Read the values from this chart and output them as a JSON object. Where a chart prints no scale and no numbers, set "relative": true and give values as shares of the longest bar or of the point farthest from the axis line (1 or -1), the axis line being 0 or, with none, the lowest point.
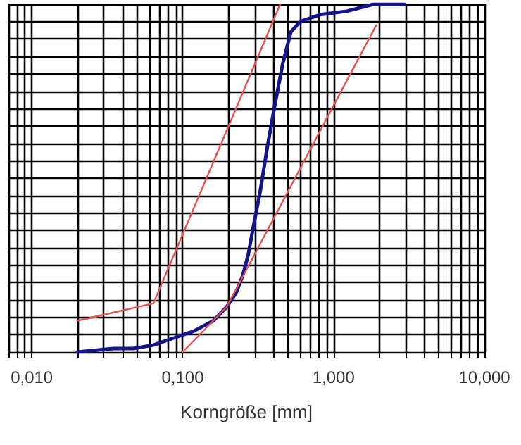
{
  "chart_data": {
    "type": "line",
    "xlabel": "Korngröße [mm]",
    "relative": true,
    "log": "x",
    "grid": true,
    "marker": "none",
    "line_style": "solid",
    "xlim": [
      0.007,
      10
    ],
    "xticks": [
      {
        "value": 0.007,
        "label": null
      },
      {
        "value": 0.008,
        "label": null
      },
      {
        "value": 0.009,
        "label": null
      },
      {
        "value": 0.01,
        "label": "0,010"
      },
      {
        "value": 0.02,
        "label": null
      },
      {
        "value": 0.03,
        "label": null
      },
      {
        "value": 0.04,
        "label": null
      },
      {
        "value": 0.05,
        "label": null
      },
      {
        "value": 0.06,
        "label": null
      },
      {
        "value": 0.07,
        "label": null
      },
      {
        "value": 0.08,
        "label": null
      },
      {
        "value": 0.09,
        "label": null
      },
      {
        "value": 0.1,
        "label": "0,100"
      },
      {
        "value": 0.2,
        "label": null
      },
      {
        "value": 0.3,
        "label": null
      },
      {
        "value": 0.4,
        "label": null
      },
      {
        "value": 0.5,
        "label": null
      },
      {
        "value": 0.6,
        "label": null
      },
      {
        "value": 0.7,
        "label": null
      },
      {
        "value": 0.8,
        "label": null
      },
      {
        "value": 0.9,
        "label": null
      },
      {
        "value": 1,
        "label": "1,000"
      },
      {
        "value": 2,
        "label": null
      },
      {
        "value": 3,
        "label": null
      },
      {
        "value": 4,
        "label": null
      },
      {
        "value": 5,
        "label": null
      },
      {
        "value": 6,
        "label": null
      },
      {
        "value": 7,
        "label": null
      },
      {
        "value": 8,
        "label": null
      },
      {
        "value": 9,
        "label": null
      },
      {
        "value": 10,
        "label": "10,000"
      }
    ],
    "series": [
      {
        "color": "#e8504a",
        "x": [
          0.02,
          0.064,
          0.443
        ],
        "values": [
          0.09,
          0.14,
          1.0
        ]
      },
      {
        "color": "#e8504a",
        "x": [
          0.1,
          0.196,
          1.92
        ],
        "values": [
          0.0,
          0.13,
          0.94
        ]
      },
      {
        "color": "#14148c",
        "x": [
          0.02,
          0.0347,
          0.0471,
          0.0638,
          0.0867,
          0.118,
          0.16,
          0.196,
          0.226,
          0.25,
          0.272,
          0.294,
          0.326,
          0.361,
          0.408,
          0.461,
          0.521,
          0.601,
          0.816,
          1.225,
          1.84,
          2.94
        ],
        "values": [
          0.0,
          0.01,
          0.01,
          0.02,
          0.04,
          0.06,
          0.09,
          0.13,
          0.17,
          0.22,
          0.28,
          0.36,
          0.46,
          0.58,
          0.71,
          0.83,
          0.92,
          0.95,
          0.97,
          0.98,
          1.0,
          1.0
        ]
      }
    ]
  }
}
